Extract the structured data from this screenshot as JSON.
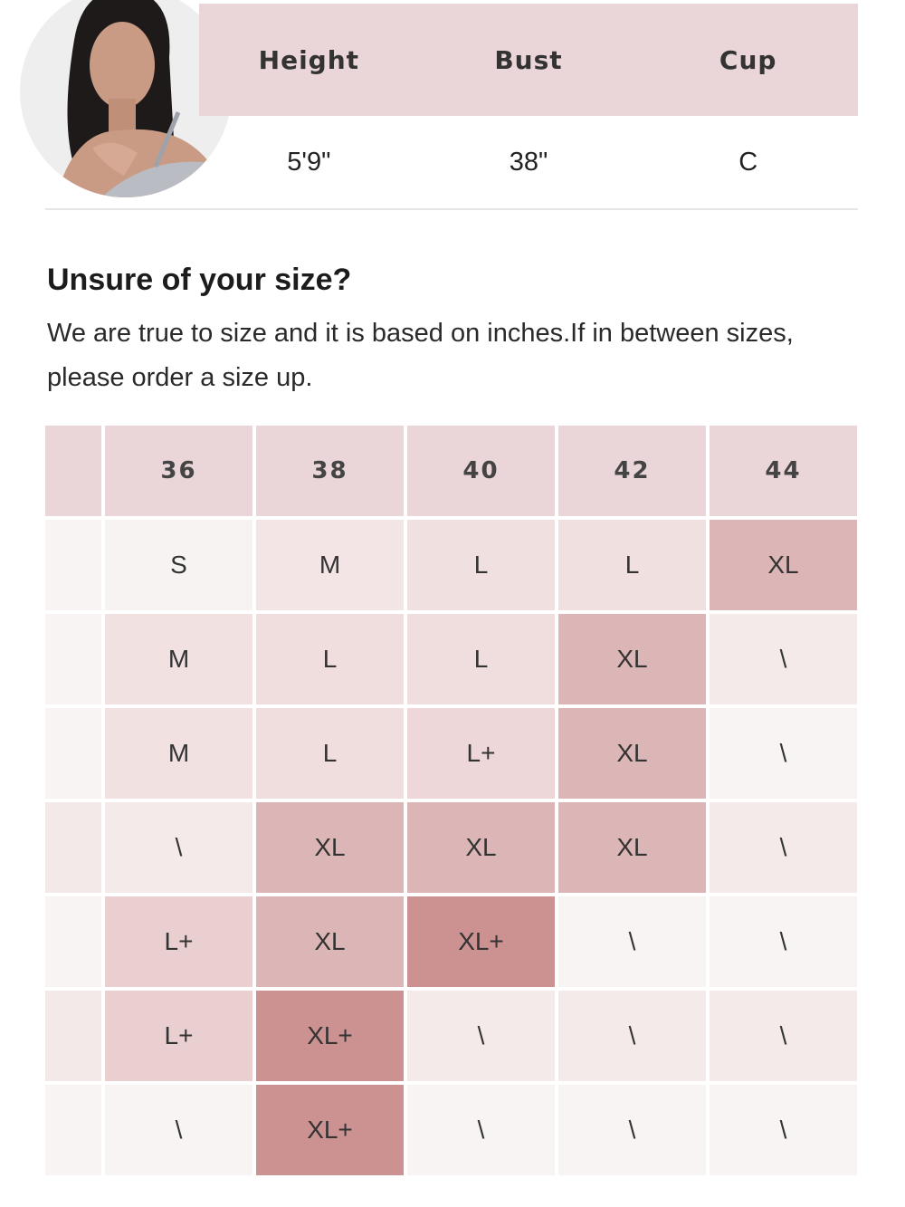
{
  "model": {
    "headers": [
      "Height",
      "Bust",
      "Cup"
    ],
    "values": [
      "5'9\"",
      "38\"",
      "C"
    ]
  },
  "heading": "Unsure of your size?",
  "description": "We are true to size and it is based on inches.If in between sizes, please order a size up.",
  "size_chart": {
    "columns": [
      "36",
      "38",
      "40",
      "42",
      "44"
    ],
    "rows": [
      [
        "S",
        "M",
        "L",
        "L",
        "XL"
      ],
      [
        "M",
        "L",
        "L",
        "XL",
        "\\"
      ],
      [
        "M",
        "L",
        "L+",
        "XL",
        "\\"
      ],
      [
        "\\",
        "XL",
        "XL",
        "XL",
        "\\"
      ],
      [
        "L+",
        "XL",
        "XL+",
        "\\",
        "\\"
      ],
      [
        "L+",
        "XL+",
        "\\",
        "\\",
        "\\"
      ],
      [
        "\\",
        "XL+",
        "\\",
        "\\",
        "\\"
      ]
    ],
    "cell_colors": [
      [
        "#f8f3f3",
        "#f3e5e5",
        "#f1e0e0",
        "#f1e0e0",
        "#dcb6b7"
      ],
      [
        "#f1e1e1",
        "#f0dede",
        "#f0dede",
        "#dcb6b7",
        "#f5eaea"
      ],
      [
        "#f1e1e1",
        "#f0dede",
        "#eed7d8",
        "#dcb6b7",
        "#f8f4f4"
      ],
      [
        "#f5eaea",
        "#dcb6b7",
        "#dcb6b7",
        "#dcb6b7",
        "#f5eaea"
      ],
      [
        "#e9cfd0",
        "#dcb6b7",
        "#cc9292",
        "#f8f4f4",
        "#f8f4f4"
      ],
      [
        "#e9cfd0",
        "#cc9292",
        "#f5eaea",
        "#f5eaea",
        "#f5eaea"
      ],
      [
        "#f8f4f4",
        "#cc9292",
        "#f8f4f4",
        "#f8f4f4",
        "#f8f4f4"
      ]
    ]
  }
}
